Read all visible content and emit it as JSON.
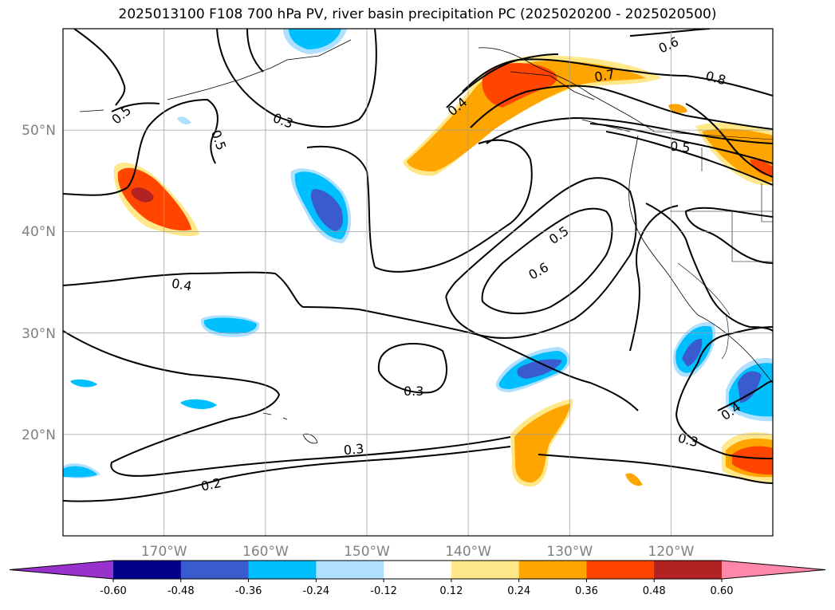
{
  "title": "2025013100 F108 700 hPa PV, river basin precipitation PC (2025020200 - 2025020500)",
  "map": {
    "projection": "PlateCarree",
    "extent": {
      "lon_min": -180,
      "lon_max": -110,
      "lat_min": 10,
      "lat_max": 60
    },
    "lat_ticks": [
      "20°N",
      "30°N",
      "40°N",
      "50°N"
    ],
    "lon_ticks": [
      "170°W",
      "160°W",
      "150°W",
      "140°W",
      "130°W",
      "120°W"
    ],
    "gridlines": true,
    "coastlines": true,
    "borders": true
  },
  "colorbar": {
    "orientation": "horizontal",
    "extend": "both",
    "levels": [
      "-0.60",
      "-0.48",
      "-0.36",
      "-0.24",
      "-0.12",
      "0.12",
      "0.24",
      "0.36",
      "0.48",
      "0.60"
    ],
    "colors": [
      "#9932cc",
      "#00008b",
      "#3a5bcd",
      "#00bfff",
      "#b0e0ff",
      "#ffffff",
      "#ffe88a",
      "#ffa500",
      "#ff4500",
      "#b22222",
      "#ff88aa"
    ]
  },
  "contour_labels": [
    {
      "text": "0.5"
    },
    {
      "text": "0.5"
    },
    {
      "text": "0.3"
    },
    {
      "text": "0.4"
    },
    {
      "text": "0.4"
    },
    {
      "text": "0.6"
    },
    {
      "text": "0.7"
    },
    {
      "text": "0.8"
    },
    {
      "text": "0.5"
    },
    {
      "text": "0.5"
    },
    {
      "text": "0.6"
    },
    {
      "text": "0.3"
    },
    {
      "text": "0.3"
    },
    {
      "text": "0.2"
    },
    {
      "text": "0.3"
    },
    {
      "text": "0.4"
    }
  ]
}
